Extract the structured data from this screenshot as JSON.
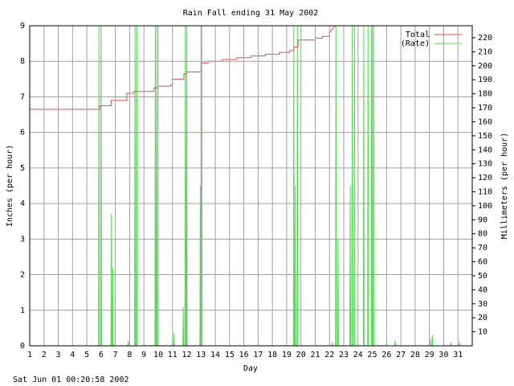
{
  "chart_data": {
    "type": "line",
    "title": "Rain Fall ending 31 May 2002",
    "xlabel": "Day",
    "ylabel": "Inches (per hour)",
    "y2label": "Millimeters (per hour)",
    "footer": "Sat Jun 01 00:20:58 2002",
    "xlim": [
      1,
      32
    ],
    "xticks": [
      1,
      2,
      3,
      4,
      5,
      6,
      7,
      8,
      9,
      10,
      11,
      12,
      13,
      14,
      15,
      16,
      17,
      18,
      19,
      20,
      21,
      22,
      23,
      24,
      25,
      26,
      27,
      28,
      29,
      30,
      31
    ],
    "ylim": [
      0,
      9
    ],
    "yticks": [
      0,
      1,
      2,
      3,
      4,
      5,
      6,
      7,
      8,
      9
    ],
    "y2lim": [
      0,
      228.6
    ],
    "y2ticks": [
      10,
      20,
      30,
      40,
      50,
      60,
      70,
      80,
      90,
      100,
      110,
      120,
      130,
      140,
      150,
      160,
      170,
      180,
      190,
      200,
      210,
      220
    ],
    "grid": true,
    "legend": "top-right",
    "series": [
      {
        "name": "Total",
        "color": "#e05050",
        "x": [
          1,
          5.9,
          5.9,
          6.7,
          6.7,
          7.8,
          7.8,
          8.3,
          8.3,
          9.7,
          9.7,
          10,
          10,
          10.9,
          10.9,
          11,
          11,
          11.8,
          11.8,
          12,
          12,
          13,
          13,
          13.5,
          13.5,
          14.5,
          14.5,
          15.5,
          15.5,
          16.5,
          16.5,
          17.5,
          17.5,
          18.5,
          18.5,
          19.2,
          19.2,
          19.5,
          19.5,
          19.8,
          19.8,
          21,
          21,
          21.5,
          21.5,
          22,
          22,
          22.4
        ],
        "values": [
          6.65,
          6.65,
          6.75,
          6.75,
          6.9,
          6.9,
          7.1,
          7.1,
          7.15,
          7.15,
          7.25,
          7.25,
          7.3,
          7.3,
          7.35,
          7.35,
          7.5,
          7.5,
          7.65,
          7.65,
          7.7,
          7.7,
          7.95,
          7.95,
          8.0,
          8.0,
          8.05,
          8.05,
          8.1,
          8.1,
          8.15,
          8.15,
          8.2,
          8.2,
          8.25,
          8.25,
          8.3,
          8.3,
          8.4,
          8.4,
          8.6,
          8.6,
          8.65,
          8.65,
          8.7,
          8.7,
          8.8,
          9.0
        ]
      },
      {
        "name": "(Rate)",
        "color": "#50e050",
        "x": [
          1,
          5.82,
          5.85,
          5.88,
          5.97,
          6.0,
          6.03,
          6.69,
          6.72,
          6.75,
          6.79,
          6.82,
          6.85,
          7.87,
          7.9,
          7.93,
          8.35,
          8.38,
          8.41,
          8.47,
          8.5,
          8.53,
          9.77,
          9.8,
          9.83,
          9.87,
          9.9,
          9.93,
          11.07,
          11.1,
          11.13,
          11.72,
          11.75,
          11.78,
          11.87,
          11.9,
          11.93,
          11.97,
          12.0,
          12.03,
          12.92,
          12.95,
          12.98,
          13.02,
          13.05,
          13.08,
          19.47,
          19.5,
          19.53,
          19.57,
          19.6,
          19.63,
          19.72,
          19.75,
          19.78,
          22.17,
          22.2,
          22.23,
          22.42,
          22.45,
          22.48,
          22.57,
          22.6,
          22.63,
          23.42,
          23.45,
          23.48,
          23.57,
          23.6,
          23.63,
          23.72,
          23.75,
          23.78,
          24.37,
          24.4,
          24.43,
          24.67,
          24.7,
          24.73,
          24.92,
          24.95,
          24.98,
          25.07,
          25.1,
          25.13,
          25.97,
          26,
          26.03,
          26.57,
          26.6,
          26.63,
          29.02,
          29.05,
          29.08,
          29.17,
          29.2,
          29.23,
          30.47,
          30.5,
          30.53,
          31.07,
          31.1,
          31.13,
          32
        ],
        "values": [
          0,
          0,
          9,
          0,
          0,
          9,
          0,
          0,
          3.7,
          0,
          0,
          2.2,
          0,
          0,
          0.15,
          0,
          0,
          9,
          0,
          0,
          9,
          0,
          0,
          9,
          0,
          0,
          9,
          0,
          0,
          0.35,
          0,
          0,
          1.1,
          0,
          0,
          9,
          0,
          0,
          9,
          0,
          0,
          4.5,
          0,
          0,
          9,
          0,
          0,
          9,
          0,
          0,
          4.5,
          0,
          0,
          9,
          0,
          0,
          0.1,
          0,
          0,
          9,
          0,
          0,
          3,
          0,
          0,
          4.5,
          0,
          0,
          9,
          0,
          0,
          9,
          0,
          0,
          9,
          0,
          0,
          9,
          0,
          0,
          9,
          0,
          0,
          9,
          0,
          0,
          0.1,
          0,
          0,
          0.15,
          0,
          0,
          0.2,
          0,
          0,
          0.3,
          0,
          0,
          0.1,
          0,
          0,
          0.1,
          0,
          0
        ]
      }
    ]
  }
}
